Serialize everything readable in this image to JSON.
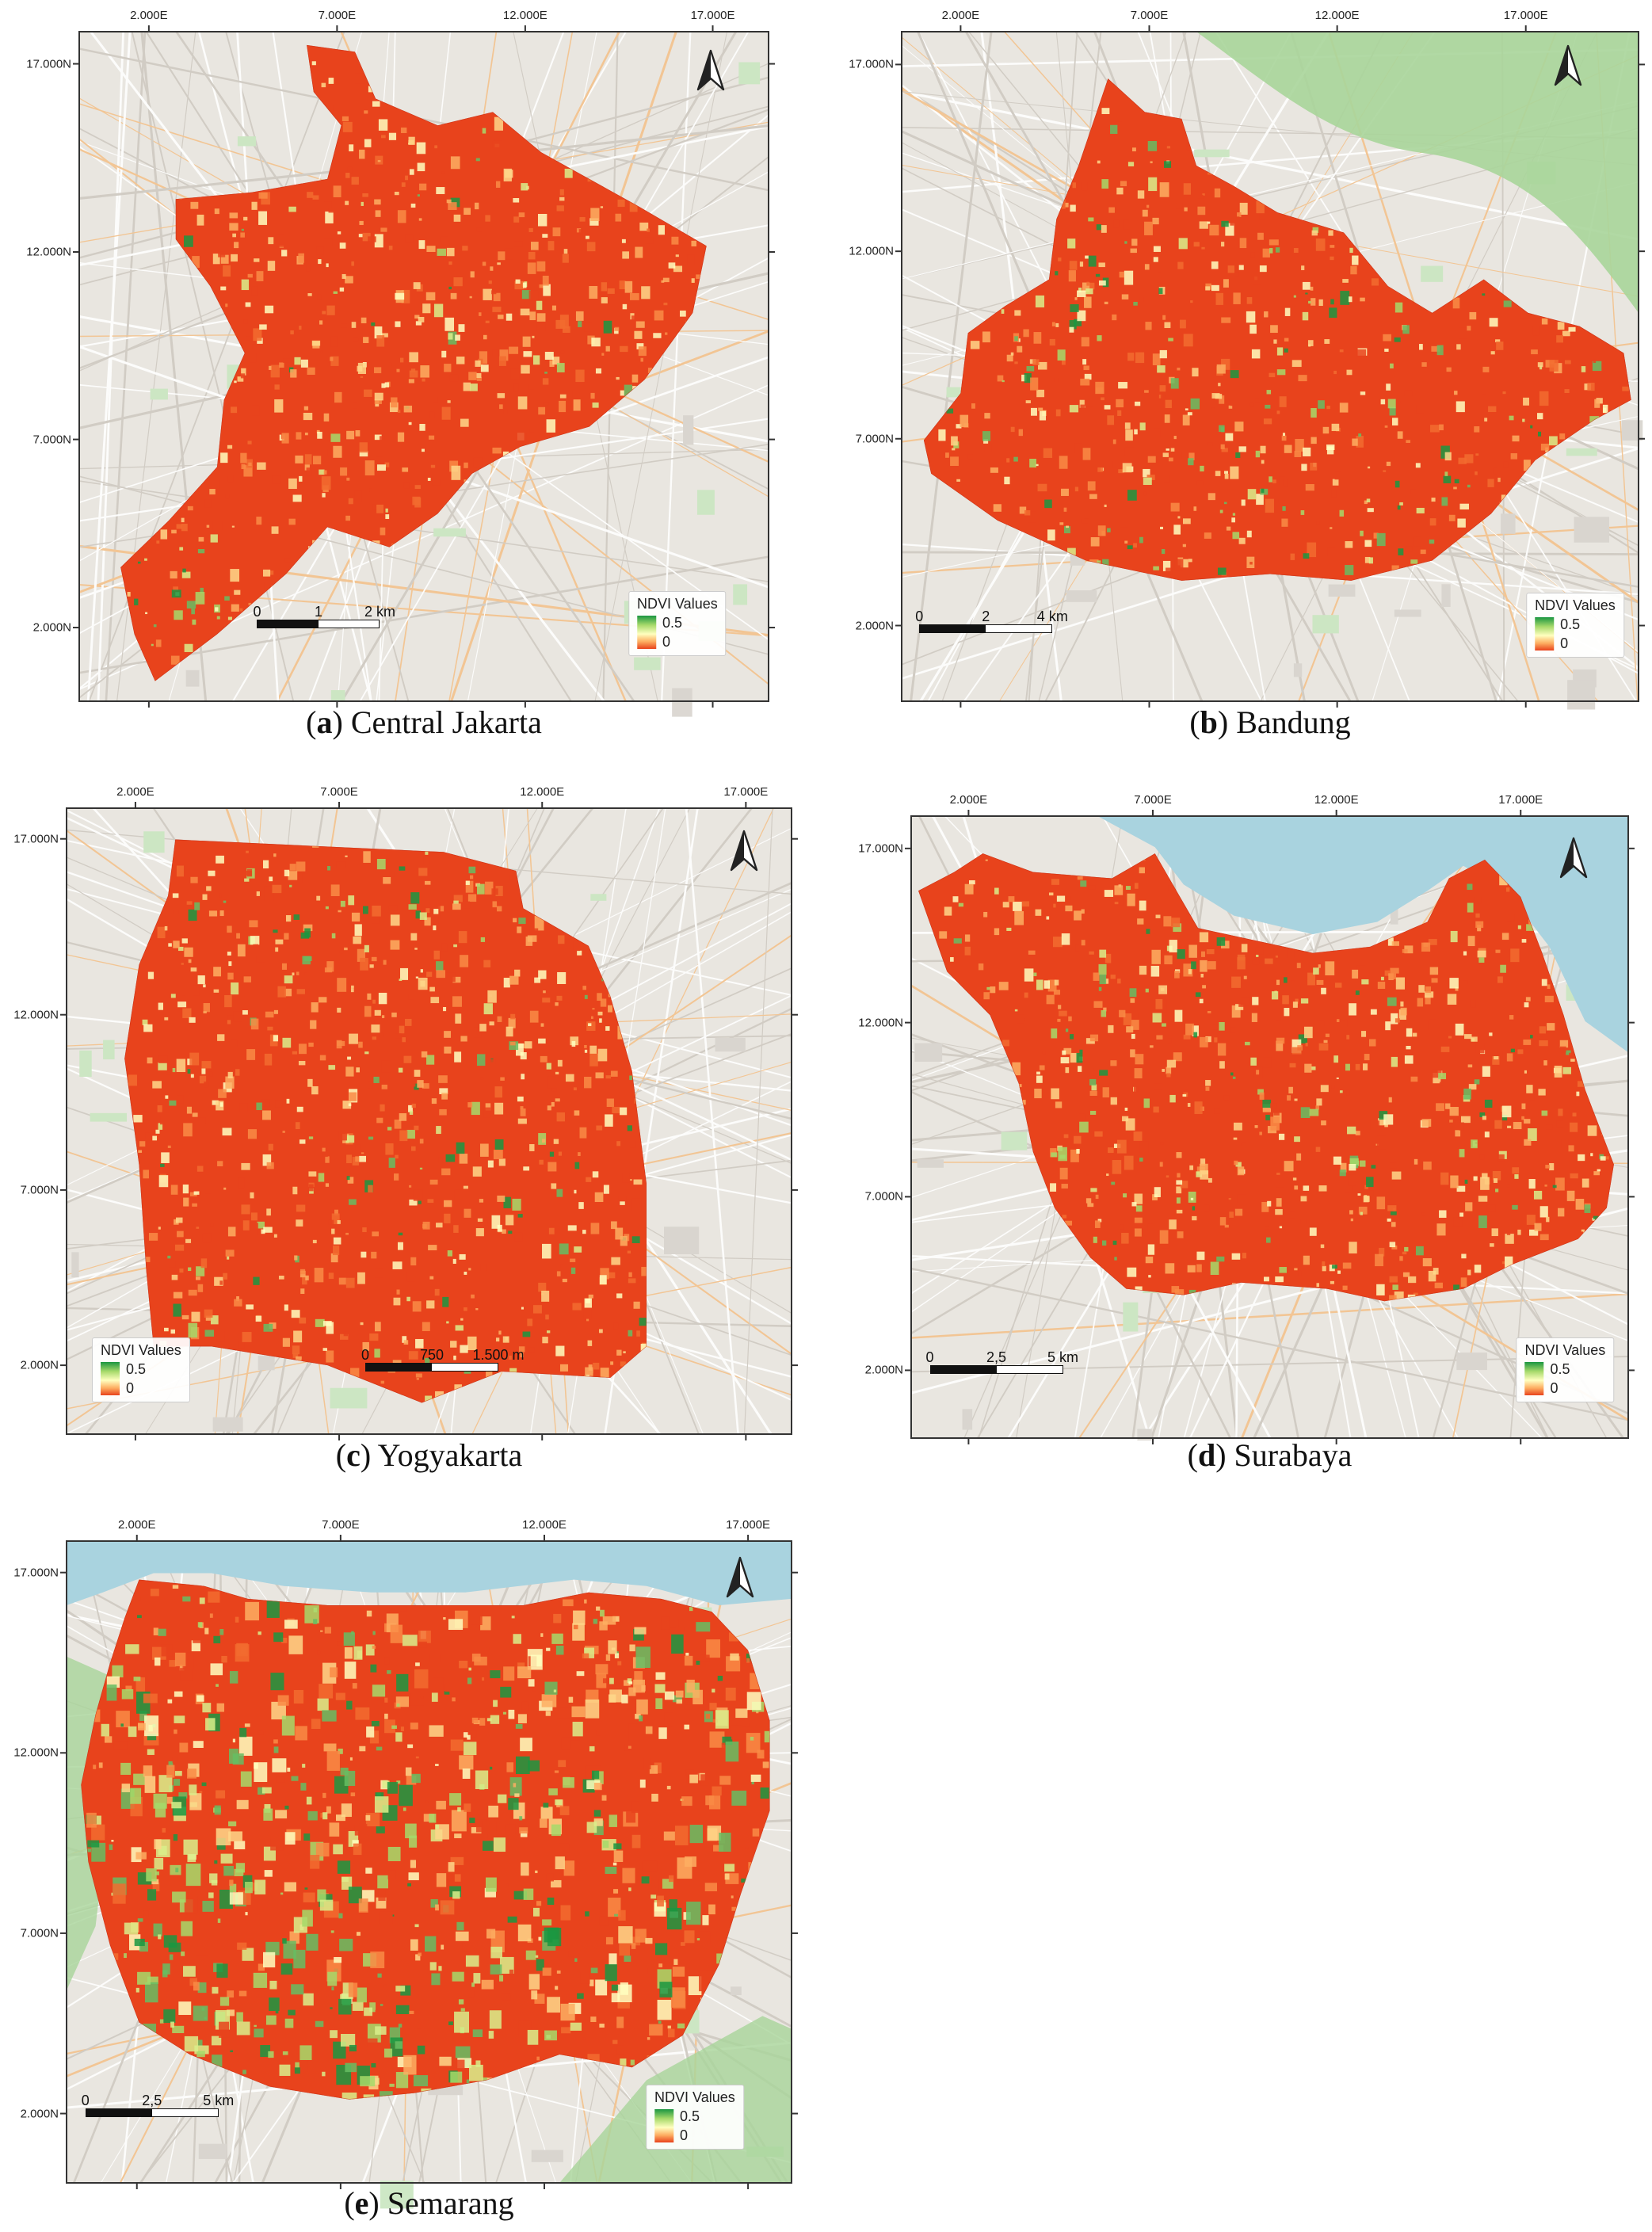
{
  "axis": {
    "x_ticks": [
      "2.000E",
      "7.000E",
      "12.000E",
      "17.000E"
    ],
    "y_ticks": [
      "17.000N",
      "12.000N",
      "7.000N",
      "2.000N"
    ]
  },
  "legend": {
    "title": "NDVI Values",
    "max": "0.5",
    "min": "0"
  },
  "colors": {
    "ndvi_low": "#e8431c",
    "ndvi_mid": "#ffffbf",
    "ndvi_high": "#1a9641",
    "water": "#a9d3df",
    "vegetation_bg": "#a8d59a",
    "basemap": "#e9e6e0"
  },
  "north_arrow_icon": "north-arrow-icon",
  "panels": [
    {
      "id": "a",
      "letter": "a",
      "caption": "Central Jakarta",
      "scale": [
        "0",
        "1",
        "2 km"
      ]
    },
    {
      "id": "b",
      "letter": "b",
      "caption": "Bandung",
      "scale": [
        "0",
        "2",
        "4 km"
      ]
    },
    {
      "id": "c",
      "letter": "c",
      "caption": "Yogyakarta",
      "scale": [
        "0",
        "750",
        "1.500 m"
      ]
    },
    {
      "id": "d",
      "letter": "d",
      "caption": "Surabaya",
      "scale": [
        "0",
        "2,5",
        "5 km"
      ]
    },
    {
      "id": "e",
      "letter": "e",
      "caption": "Semarang",
      "scale": [
        "0",
        "2,5",
        "5 km"
      ]
    }
  ]
}
